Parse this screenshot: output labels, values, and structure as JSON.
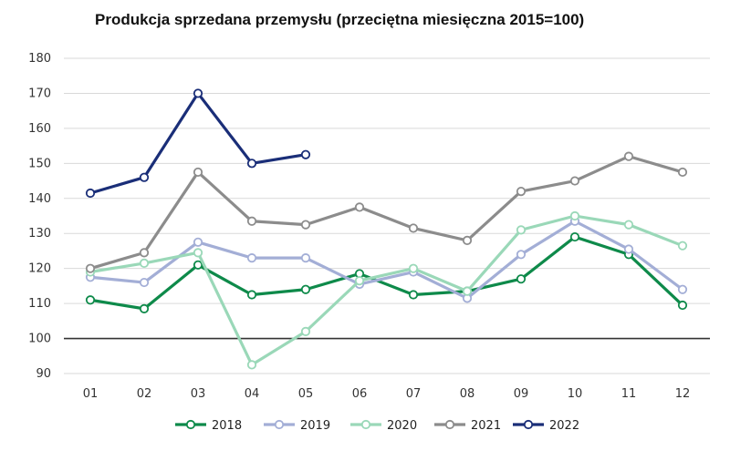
{
  "chart_data": {
    "type": "line",
    "title": "Produkcja sprzedana przemysłu (przeciętna miesięczna 2015=100)",
    "xlabel": "",
    "ylabel": "",
    "categories": [
      "01",
      "02",
      "03",
      "04",
      "05",
      "06",
      "07",
      "08",
      "09",
      "10",
      "11",
      "12"
    ],
    "ylim": [
      90,
      180
    ],
    "yticks": [
      90,
      100,
      110,
      120,
      130,
      140,
      150,
      160,
      170,
      180
    ],
    "reference_line": 100,
    "grid": true,
    "legend_position": "bottom",
    "series": [
      {
        "name": "2018",
        "color": "#0e8a4a",
        "values": [
          111,
          108.5,
          121,
          112.5,
          114,
          118.5,
          112.5,
          113.5,
          117,
          129,
          124,
          109.5
        ]
      },
      {
        "name": "2019",
        "color": "#a3aed6",
        "values": [
          117.5,
          116,
          127.5,
          123,
          123,
          115.5,
          119,
          111.5,
          124,
          133.5,
          125.5,
          114
        ]
      },
      {
        "name": "2020",
        "color": "#9ad8b8",
        "values": [
          119,
          121.5,
          124.5,
          92.5,
          102,
          116.5,
          120,
          113.5,
          131,
          135,
          132.5,
          126.5
        ]
      },
      {
        "name": "2021",
        "color": "#8c8c8c",
        "values": [
          120,
          124.5,
          147.5,
          133.5,
          132.5,
          137.5,
          131.5,
          128,
          142,
          145,
          152,
          147.5
        ]
      },
      {
        "name": "2022",
        "color": "#1a2e78",
        "values": [
          141.5,
          146,
          170,
          150,
          152.5,
          null,
          null,
          null,
          null,
          null,
          null,
          null
        ]
      }
    ]
  }
}
